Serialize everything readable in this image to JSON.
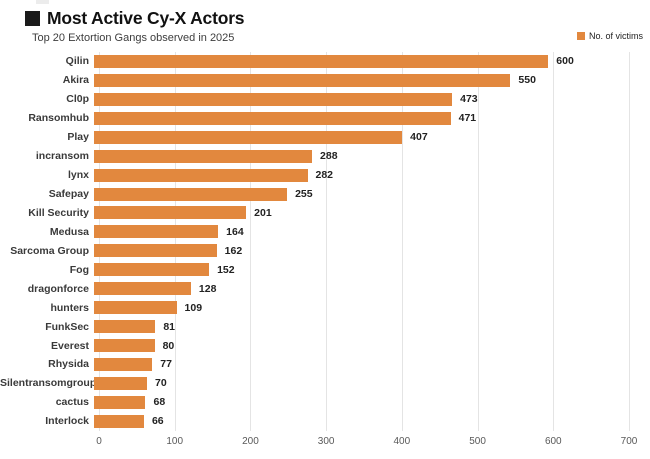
{
  "header": {
    "title": "Most Active Cy-X Actors",
    "subtitle": "Top 20 Extortion Gangs observed in 2025"
  },
  "legend": {
    "label": "No. of victims"
  },
  "colors": {
    "bar": "#E2883E",
    "gridline": "#E4E4E4",
    "title": "#111111",
    "tick_label": "#595959",
    "category_label": "#3A3A3A",
    "value_label": "#222222"
  },
  "chart_data": {
    "type": "bar",
    "orientation": "horizontal",
    "title": "Most Active Cy-X Actors",
    "subtitle": "Top 20 Extortion Gangs observed in 2025",
    "legend_entries": [
      "No. of victims"
    ],
    "legend_position": "top-right",
    "grid": "vertical",
    "xlabel": "",
    "ylabel": "",
    "xlim": [
      0,
      700
    ],
    "xticks": [
      0,
      100,
      200,
      300,
      400,
      500,
      600,
      700
    ],
    "categories": [
      "Qilin",
      "Akira",
      "Cl0p",
      "Ransomhub",
      "Play",
      "incransom",
      "lynx",
      "Safepay",
      "Kill Security",
      "Medusa",
      "Sarcoma Group",
      "Fog",
      "dragonforce",
      "hunters",
      "FunkSec",
      "Everest",
      "Rhysida",
      "Silentransomgroup",
      "cactus",
      "Interlock"
    ],
    "series": [
      {
        "name": "No. of victims",
        "values": [
          600,
          550,
          473,
          471,
          407,
          288,
          282,
          255,
          201,
          164,
          162,
          152,
          128,
          109,
          81,
          80,
          77,
          70,
          68,
          66
        ]
      }
    ]
  }
}
